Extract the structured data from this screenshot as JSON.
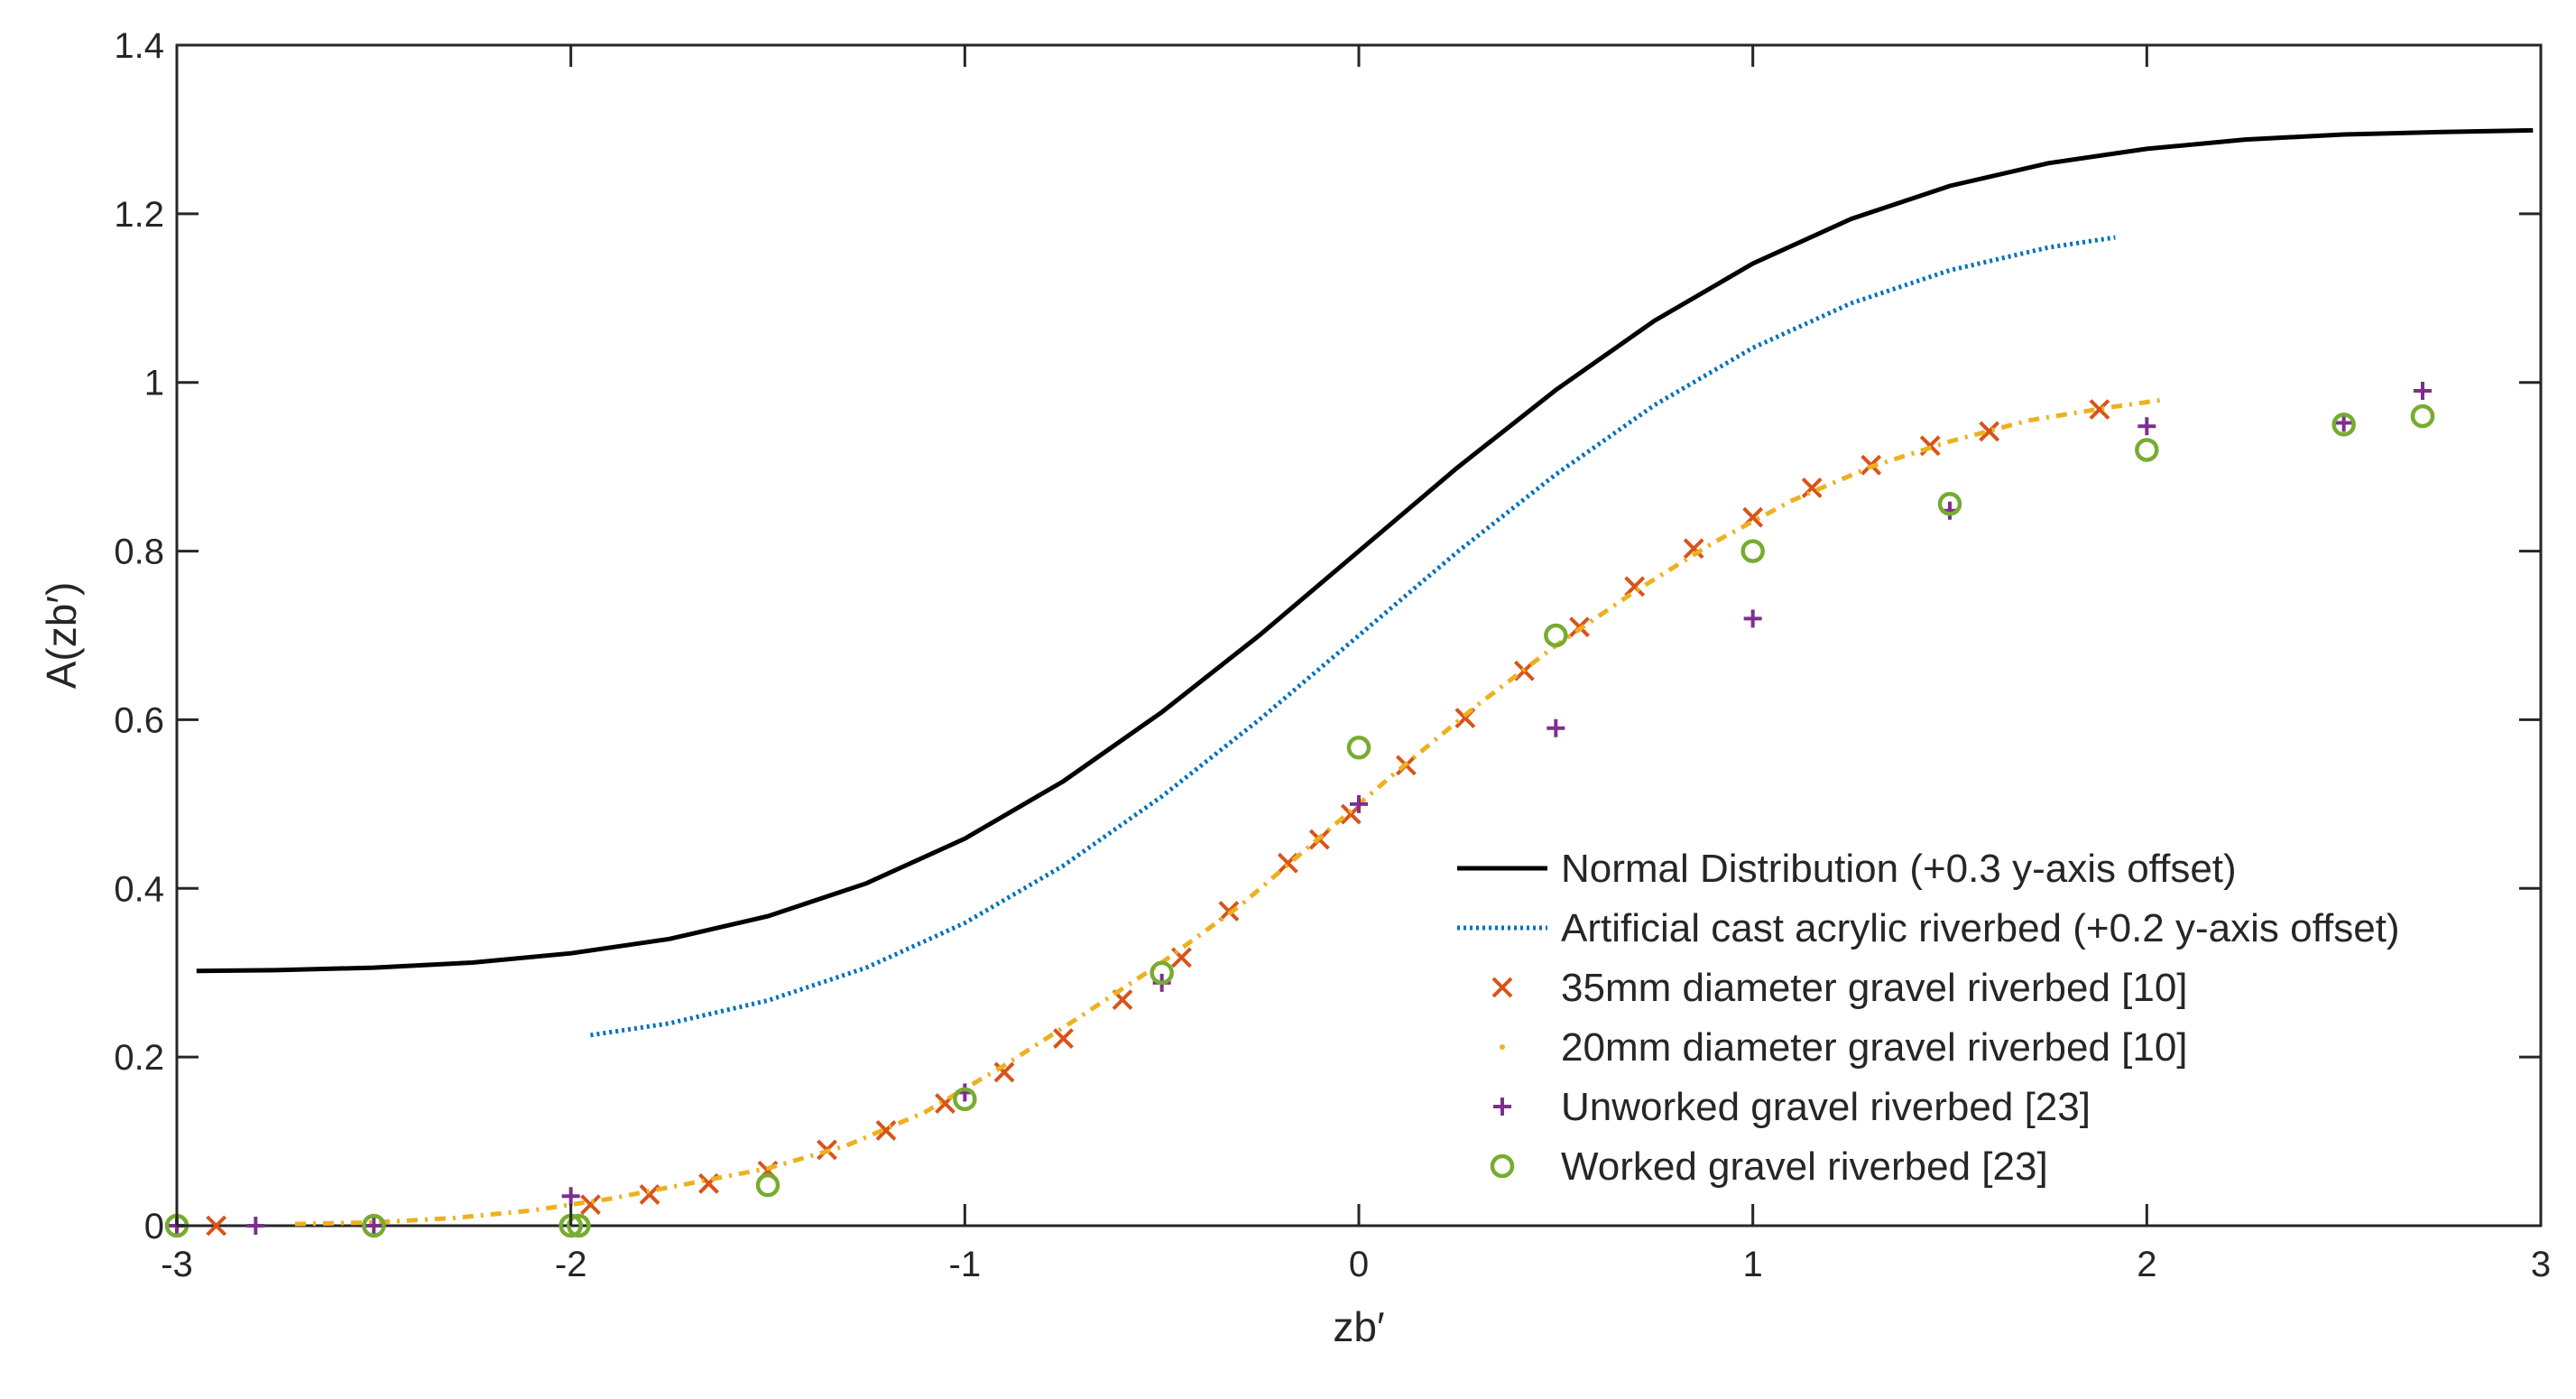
{
  "chart_data": {
    "type": "line",
    "title": "",
    "xlabel": "zb′",
    "ylabel": "A(zb′)",
    "xlim": [
      -3,
      3
    ],
    "ylim": [
      0,
      1.4
    ],
    "xticks": [
      -3,
      -2,
      -1,
      0,
      1,
      2,
      3
    ],
    "xtick_labels": [
      "-3",
      "-2",
      "-1",
      "0",
      "1",
      "2",
      "3"
    ],
    "yticks": [
      0,
      0.2,
      0.4,
      0.6,
      0.8,
      1,
      1.2,
      1.4
    ],
    "ytick_labels": [
      "0",
      "0.2",
      "0.4",
      "0.6",
      "0.8",
      "1",
      "1.2",
      "1.4"
    ],
    "grid": false,
    "legend_position": "bottom-right",
    "series": [
      {
        "name": "Normal Distribution (+0.3 y-axis offset)",
        "style": "solid-line",
        "color": "#000000",
        "x": [
          -2.95,
          -2.75,
          -2.5,
          -2.25,
          -2.0,
          -1.75,
          -1.5,
          -1.25,
          -1.0,
          -0.75,
          -0.5,
          -0.25,
          0.0,
          0.25,
          0.5,
          0.75,
          1.0,
          1.25,
          1.5,
          1.75,
          2.0,
          2.25,
          2.5,
          2.75,
          2.98
        ],
        "y": [
          0.302,
          0.303,
          0.306,
          0.312,
          0.323,
          0.34,
          0.367,
          0.406,
          0.459,
          0.527,
          0.609,
          0.701,
          0.8,
          0.899,
          0.991,
          1.073,
          1.141,
          1.194,
          1.233,
          1.26,
          1.277,
          1.288,
          1.294,
          1.297,
          1.299
        ]
      },
      {
        "name": "Artificial cast acrylic riverbed (+0.2 y-axis offset)",
        "style": "dotted-line",
        "color": "#0072BD",
        "x": [
          -1.95,
          -1.75,
          -1.5,
          -1.25,
          -1.0,
          -0.75,
          -0.5,
          -0.25,
          0.0,
          0.25,
          0.5,
          0.75,
          1.0,
          1.25,
          1.5,
          1.75,
          1.92
        ],
        "y": [
          0.226,
          0.24,
          0.267,
          0.306,
          0.359,
          0.427,
          0.509,
          0.601,
          0.7,
          0.799,
          0.891,
          0.973,
          1.041,
          1.094,
          1.133,
          1.16,
          1.172
        ]
      },
      {
        "name": "35mm diameter gravel riverbed [10]",
        "style": "x-marker",
        "color": "#D95319",
        "x": [
          -2.9,
          -1.95,
          -1.8,
          -1.65,
          -1.5,
          -1.35,
          -1.2,
          -1.05,
          -0.9,
          -0.75,
          -0.6,
          -0.45,
          -0.33,
          -0.18,
          -0.1,
          -0.02,
          0.12,
          0.27,
          0.42,
          0.56,
          0.7,
          0.85,
          1.0,
          1.15,
          1.3,
          1.45,
          1.6,
          1.88
        ],
        "y": [
          0.0,
          0.025,
          0.037,
          0.05,
          0.065,
          0.09,
          0.113,
          0.145,
          0.182,
          0.222,
          0.268,
          0.318,
          0.373,
          0.43,
          0.458,
          0.488,
          0.546,
          0.602,
          0.658,
          0.71,
          0.758,
          0.803,
          0.84,
          0.875,
          0.902,
          0.925,
          0.942,
          0.968
        ]
      },
      {
        "name": "20mm diameter gravel riverbed [10]",
        "style": "dash-dot-line",
        "color": "#EDB120",
        "x": [
          -2.7,
          -2.5,
          -2.3,
          -2.1,
          -1.9,
          -1.7,
          -1.5,
          -1.3,
          -1.1,
          -0.9,
          -0.7,
          -0.5,
          -0.3,
          -0.1,
          0.0,
          0.1,
          0.3,
          0.5,
          0.7,
          0.9,
          1.1,
          1.3,
          1.5,
          1.7,
          1.9,
          2.05
        ],
        "y": [
          0.002,
          0.004,
          0.009,
          0.018,
          0.032,
          0.05,
          0.068,
          0.095,
          0.135,
          0.19,
          0.25,
          0.312,
          0.38,
          0.46,
          0.5,
          0.54,
          0.617,
          0.688,
          0.752,
          0.81,
          0.86,
          0.9,
          0.93,
          0.955,
          0.97,
          0.98
        ]
      },
      {
        "name": "Unworked gravel riverbed [23]",
        "style": "plus-marker",
        "color": "#7E2F8E",
        "x": [
          -3.0,
          -2.8,
          -2.5,
          -2.0,
          -1.0,
          -0.5,
          0.0,
          0.5,
          1.0,
          1.5,
          2.0,
          2.5,
          2.7
        ],
        "y": [
          0.0,
          0.0,
          0.0,
          0.035,
          0.158,
          0.288,
          0.5,
          0.59,
          0.72,
          0.848,
          0.948,
          0.952,
          0.99
        ]
      },
      {
        "name": "Worked gravel riverbed [23]",
        "style": "circle-marker",
        "color": "#77AC30",
        "x": [
          -3.0,
          -2.5,
          -2.0,
          -1.98,
          -1.5,
          -1.0,
          -0.5,
          0.0,
          0.5,
          1.0,
          1.5,
          2.0,
          2.5,
          2.7
        ],
        "y": [
          0.0,
          0.0,
          0.0,
          0.0,
          0.048,
          0.15,
          0.3,
          0.567,
          0.7,
          0.8,
          0.856,
          0.92,
          0.95,
          0.96
        ]
      }
    ]
  }
}
